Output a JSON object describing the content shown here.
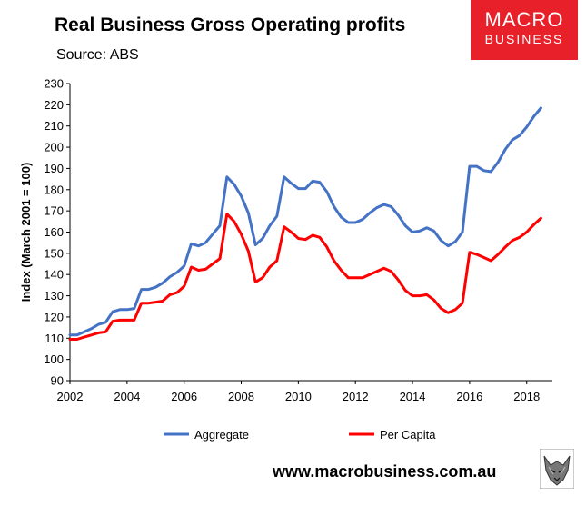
{
  "header": {
    "title": "Real Business Gross Operating profits",
    "source": "Source: ABS"
  },
  "logo": {
    "line1": "MACRO",
    "line2": "BUSINESS",
    "bg_color": "#e8202a"
  },
  "footer": {
    "url": "www.macrobusiness.com.au",
    "wolf_icon": "wolf-head-icon"
  },
  "colors": {
    "aggregate": "#4472c4",
    "per_capita": "#ff0000"
  },
  "chart_data": {
    "type": "line",
    "title": "Real Business Gross Operating profits",
    "xlabel": "",
    "ylabel": "Index (March 2001 = 100)",
    "xlim": [
      2002,
      2018.9
    ],
    "ylim": [
      90,
      230
    ],
    "x_ticks": [
      2002,
      2004,
      2006,
      2008,
      2010,
      2012,
      2014,
      2016,
      2018
    ],
    "y_ticks": [
      90,
      100,
      110,
      120,
      130,
      140,
      150,
      160,
      170,
      180,
      190,
      200,
      210,
      220,
      230
    ],
    "grid": false,
    "legend": "bottom",
    "series": [
      {
        "name": "Aggregate",
        "x": [
          2002.0,
          2002.25,
          2002.5,
          2002.75,
          2003.0,
          2003.25,
          2003.5,
          2003.75,
          2004.0,
          2004.25,
          2004.5,
          2004.75,
          2005.0,
          2005.25,
          2005.5,
          2005.75,
          2006.0,
          2006.25,
          2006.5,
          2006.75,
          2007.0,
          2007.25,
          2007.5,
          2007.75,
          2008.0,
          2008.25,
          2008.5,
          2008.75,
          2009.0,
          2009.25,
          2009.5,
          2009.75,
          2010.0,
          2010.25,
          2010.5,
          2010.75,
          2011.0,
          2011.25,
          2011.5,
          2011.75,
          2012.0,
          2012.25,
          2012.5,
          2012.75,
          2013.0,
          2013.25,
          2013.5,
          2013.75,
          2014.0,
          2014.25,
          2014.5,
          2014.75,
          2015.0,
          2015.25,
          2015.5,
          2015.75,
          2016.0,
          2016.25,
          2016.5,
          2016.75,
          2017.0,
          2017.25,
          2017.5,
          2017.75,
          2018.0,
          2018.25,
          2018.5
        ],
        "values": [
          111.5,
          111.5,
          113,
          114.5,
          116.5,
          117.5,
          122.5,
          123.5,
          123.5,
          124,
          133,
          133,
          134,
          136,
          139,
          141,
          144,
          154.5,
          153.5,
          155,
          159,
          163,
          186,
          182.5,
          177,
          169,
          154,
          157,
          163,
          167.5,
          186,
          183,
          180.5,
          180.5,
          184,
          183.5,
          179,
          172,
          167,
          164.5,
          164.5,
          166,
          169,
          171.5,
          173,
          172,
          168,
          163,
          160,
          160.5,
          162,
          160.5,
          156,
          153.5,
          155.5,
          160,
          191,
          191,
          189,
          188.5,
          193,
          199,
          203.5,
          205.5,
          209.5,
          214.5,
          218.5
        ]
      },
      {
        "name": "Per Capita",
        "x": [
          2002.0,
          2002.25,
          2002.5,
          2002.75,
          2003.0,
          2003.25,
          2003.5,
          2003.75,
          2004.0,
          2004.25,
          2004.5,
          2004.75,
          2005.0,
          2005.25,
          2005.5,
          2005.75,
          2006.0,
          2006.25,
          2006.5,
          2006.75,
          2007.0,
          2007.25,
          2007.5,
          2007.75,
          2008.0,
          2008.25,
          2008.5,
          2008.75,
          2009.0,
          2009.25,
          2009.5,
          2009.75,
          2010.0,
          2010.25,
          2010.5,
          2010.75,
          2011.0,
          2011.25,
          2011.5,
          2011.75,
          2012.0,
          2012.25,
          2012.5,
          2012.75,
          2013.0,
          2013.25,
          2013.5,
          2013.75,
          2014.0,
          2014.25,
          2014.5,
          2014.75,
          2015.0,
          2015.25,
          2015.5,
          2015.75,
          2016.0,
          2016.25,
          2016.5,
          2016.75,
          2017.0,
          2017.25,
          2017.5,
          2017.75,
          2018.0,
          2018.25,
          2018.5
        ],
        "values": [
          109.5,
          109.5,
          110.5,
          111.5,
          112.5,
          113,
          118,
          118.5,
          118.5,
          118.5,
          126.5,
          126.5,
          127,
          127.5,
          130.5,
          131.5,
          134.5,
          143.5,
          142,
          142.5,
          145,
          147.5,
          168.5,
          165,
          159,
          151,
          136.5,
          138.5,
          143.5,
          146.5,
          162.5,
          160,
          157,
          156.5,
          158.5,
          157.5,
          153,
          146.5,
          142,
          138.5,
          138.5,
          138.5,
          140,
          141.5,
          143,
          141.5,
          137.5,
          132.5,
          130,
          130,
          130.5,
          128,
          124,
          122,
          123.5,
          126.5,
          150.5,
          149.5,
          148,
          146.5,
          149.5,
          153,
          156,
          157.5,
          160,
          163.5,
          166.5
        ]
      }
    ]
  }
}
